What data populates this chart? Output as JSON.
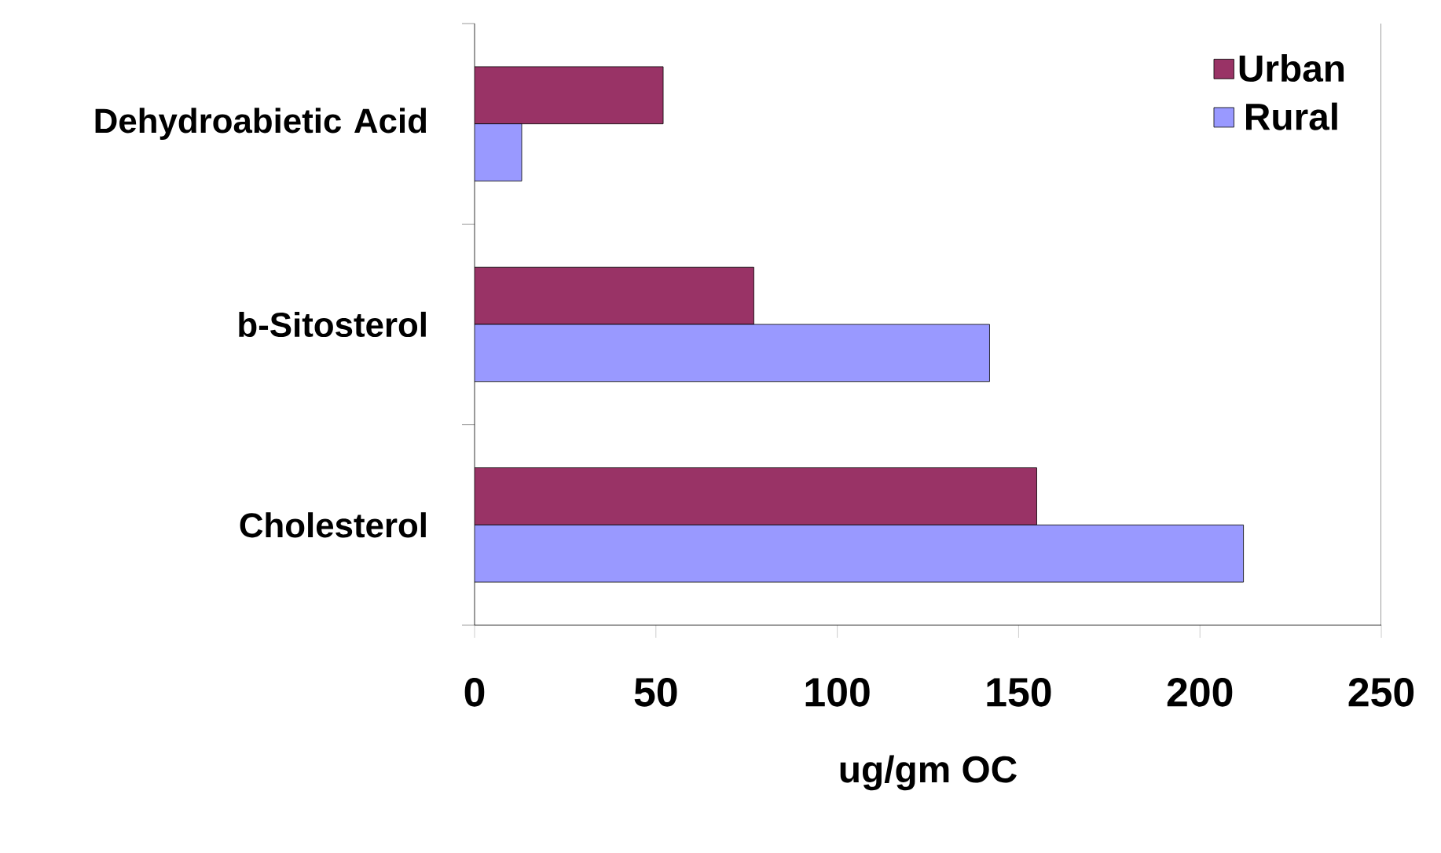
{
  "chart_data": {
    "type": "bar",
    "orientation": "horizontal",
    "xlabel": "ug/gm OC",
    "categories": [
      "Dehydroabietic Acid",
      "b-Sitosterol",
      "Cholesterol"
    ],
    "series": [
      {
        "name": "Urban",
        "color": "#993366",
        "values": [
          52,
          77,
          155
        ]
      },
      {
        "name": "Rural",
        "color": "#9999ff",
        "values": [
          13,
          142,
          212
        ]
      }
    ],
    "xlim": [
      0,
      250
    ],
    "xticks": [
      0,
      50,
      100,
      150,
      200,
      250
    ],
    "grid": false,
    "legend": "top right"
  }
}
